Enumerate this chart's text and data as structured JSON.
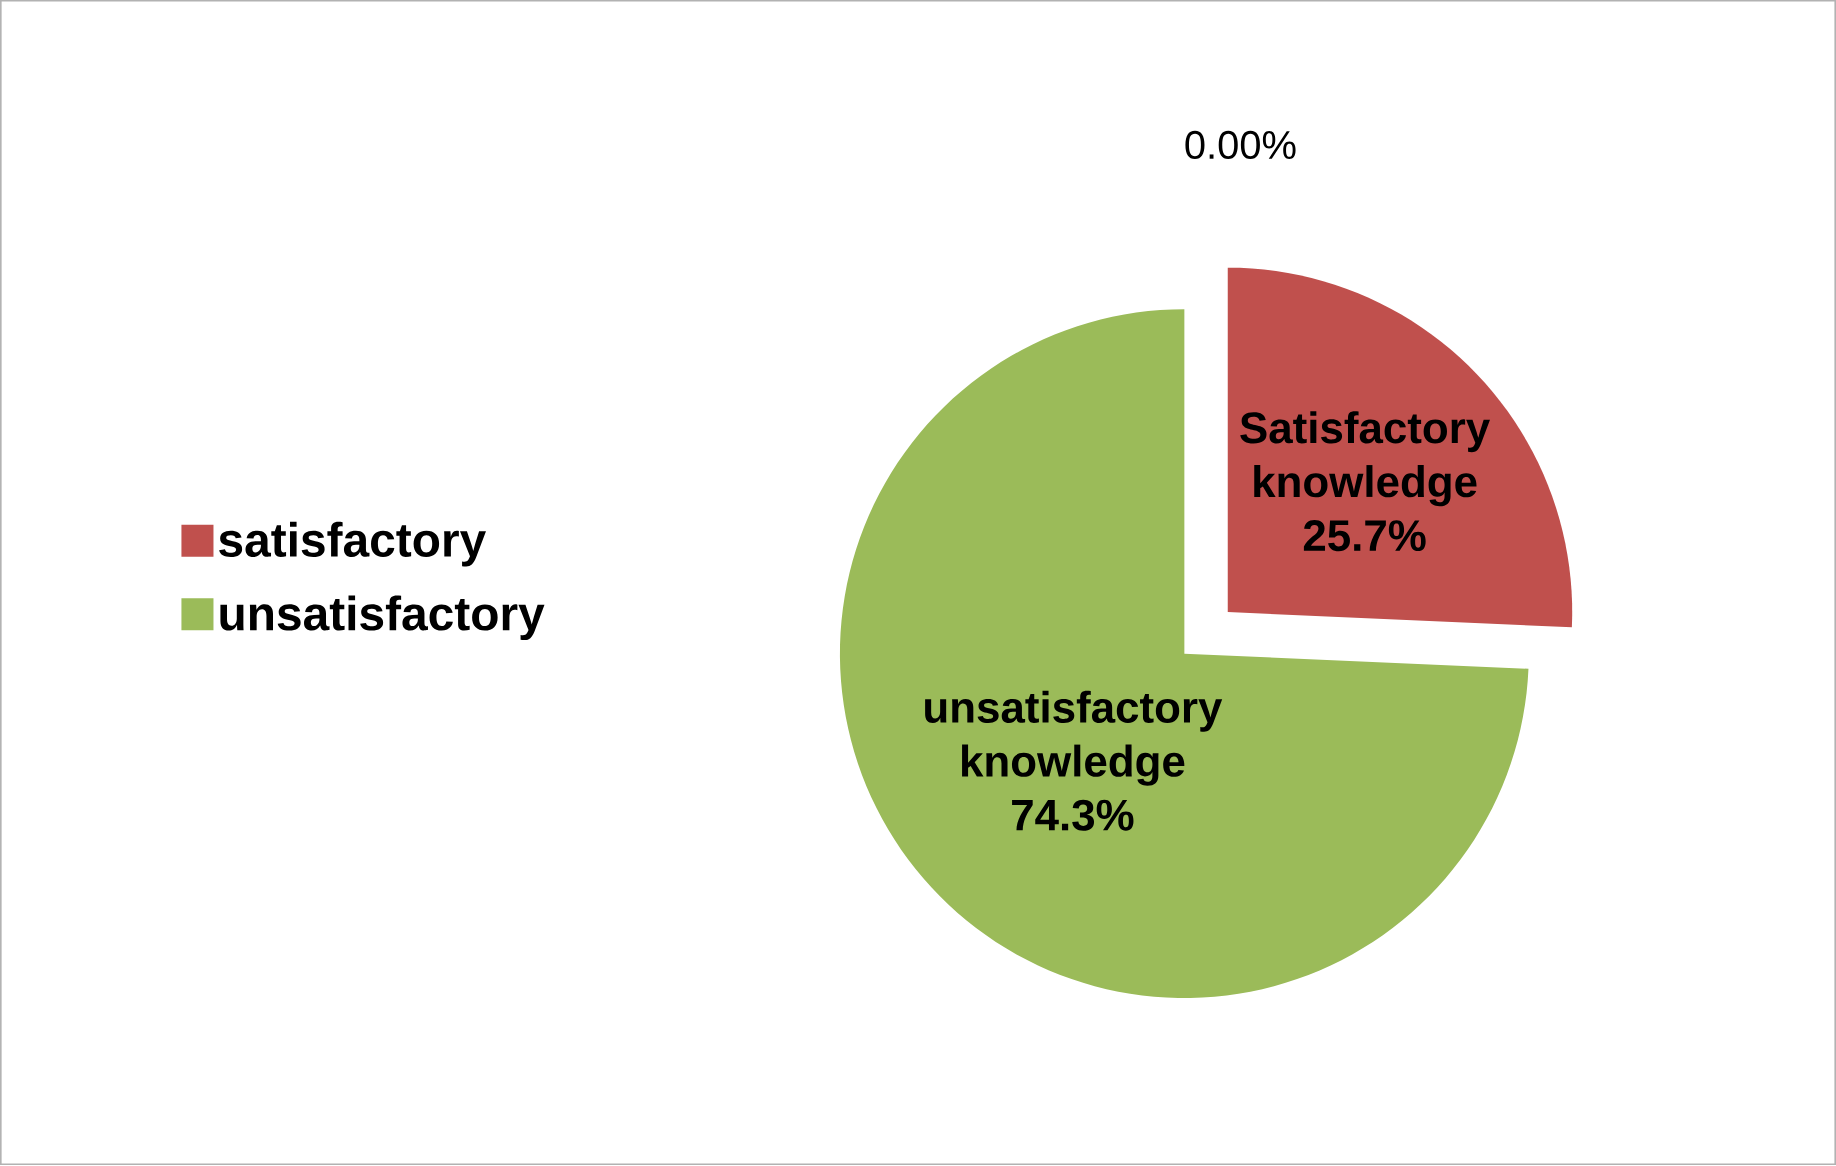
{
  "chart_data": {
    "type": "pie",
    "categories": [
      "satisfactory",
      "unsatisfactory"
    ],
    "values": [
      25.7,
      74.3
    ],
    "colors": [
      "#c0504d",
      "#9bbb59"
    ],
    "value_labels": [
      "Satisfactory knowledge 25.7%",
      "unsatisfactory knowledge 74.3%"
    ],
    "annotations": [
      "0.00%"
    ],
    "legend": "left"
  }
}
